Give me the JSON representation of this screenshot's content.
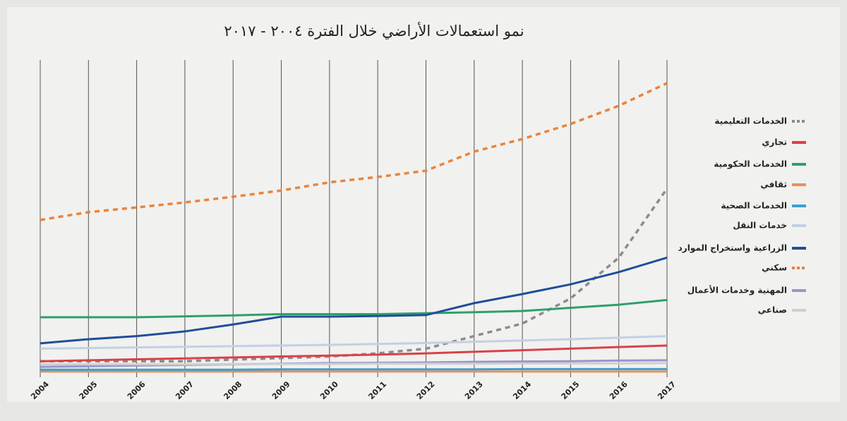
{
  "chart_data": {
    "type": "line",
    "title": "نمو استعمالات الأراضي خلال الفترة ٢٠٠٤ - ٢٠١٧",
    "categories": [
      "2004",
      "2005",
      "2006",
      "2007",
      "2008",
      "2009",
      "2010",
      "2011",
      "2012",
      "2013",
      "2014",
      "2015",
      "2016",
      "2017"
    ],
    "ylim": [
      0,
      100
    ],
    "series": [
      {
        "name": "الخدمات التعليمية",
        "color": "#8c8c8c",
        "dashed": true,
        "values": [
          4,
          4,
          4,
          4,
          4.5,
          5,
          5.5,
          6.5,
          8,
          12,
          16,
          24,
          37,
          59
        ]
      },
      {
        "name": "تجاري",
        "color": "#d9414a",
        "dashed": false,
        "values": [
          4,
          4.3,
          4.6,
          4.9,
          5.2,
          5.5,
          5.8,
          6.1,
          6.5,
          7,
          7.5,
          8,
          8.5,
          9
        ]
      },
      {
        "name": "الخدمات الحكومية",
        "color": "#2ea06a",
        "dashed": false,
        "values": [
          18,
          18,
          18,
          18.3,
          18.6,
          19,
          19,
          19,
          19.3,
          19.6,
          20,
          21,
          22,
          23.5
        ]
      },
      {
        "name": "ثقافي",
        "color": "#e8905a",
        "dashed": false,
        "values": [
          0.7,
          0.7,
          0.7,
          0.7,
          0.7,
          0.7,
          0.7,
          0.7,
          0.7,
          0.7,
          0.7,
          0.7,
          0.7,
          0.7
        ]
      },
      {
        "name": "الخدمات الصحية",
        "color": "#3aa0d0",
        "dashed": false,
        "values": [
          1.3,
          1.3,
          1.3,
          1.3,
          1.3,
          1.4,
          1.4,
          1.4,
          1.4,
          1.4,
          1.5,
          1.5,
          1.5,
          1.5
        ]
      },
      {
        "name": "خدمات النقل",
        "color": "#c3d0e4",
        "dashed": false,
        "values": [
          8,
          8.2,
          8.4,
          8.6,
          8.8,
          9,
          9.2,
          9.5,
          9.8,
          10.2,
          10.6,
          11,
          11.5,
          12
        ]
      },
      {
        "name": "الزراعية واستخراج الموارد",
        "color": "#1f4e9a",
        "dashed": false,
        "values": [
          9.7,
          11,
          12,
          13.5,
          15.7,
          18.2,
          18.2,
          18.4,
          18.7,
          22.5,
          25.4,
          28.5,
          32.4,
          37
        ]
      },
      {
        "name": "سكني",
        "color": "#e8843c",
        "dashed": true,
        "values": [
          49,
          51.5,
          53,
          54.6,
          56.4,
          58.4,
          61,
          62.7,
          64.7,
          70.8,
          74.8,
          79.6,
          85.4,
          92.6
        ]
      },
      {
        "name": "المهنية وخدمات الأعمال",
        "color": "#9a94d0",
        "dashed": false,
        "values": [
          2.2,
          2.4,
          2.6,
          2.8,
          3,
          3.2,
          3.4,
          3.5,
          3.6,
          3.8,
          3.9,
          4,
          4.2,
          4.3
        ]
      },
      {
        "name": "صناعي",
        "color": "#cfcfcf",
        "dashed": false,
        "values": [
          3,
          3,
          3,
          3,
          3.1,
          3.1,
          3.1,
          3.2,
          3.2,
          3.2,
          3.3,
          3.3,
          3.3,
          3.4
        ]
      }
    ]
  }
}
